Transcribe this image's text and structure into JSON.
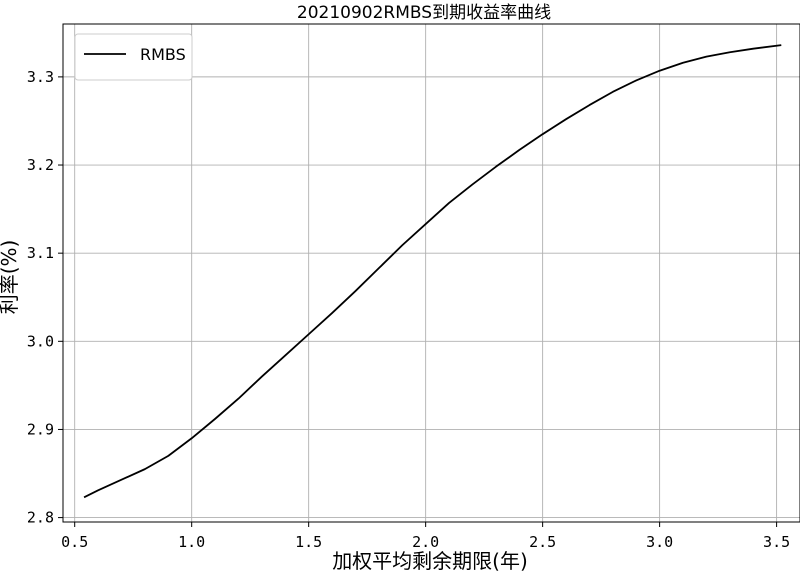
{
  "chart_data": {
    "type": "line",
    "title": "20210902RMBS到期收益率曲线",
    "xlabel": "加权平均剩余期限(年)",
    "ylabel": "利率(%)",
    "xlim": [
      0.45,
      3.6
    ],
    "ylim": [
      2.795,
      3.36
    ],
    "xticks": [
      0.5,
      1.0,
      1.5,
      2.0,
      2.5,
      3.0,
      3.5
    ],
    "xtick_labels": [
      "0.5",
      "1.0",
      "1.5",
      "2.0",
      "2.5",
      "3.0",
      "3.5"
    ],
    "yticks": [
      2.8,
      2.9,
      3.0,
      3.1,
      3.2,
      3.3
    ],
    "ytick_labels": [
      "2.8",
      "2.9",
      "3.0",
      "3.1",
      "3.2",
      "3.3"
    ],
    "grid": true,
    "legend_position": "upper-left",
    "series": [
      {
        "name": "RMBS",
        "color": "#000000",
        "x": [
          0.54,
          0.6,
          0.7,
          0.8,
          0.9,
          1.0,
          1.1,
          1.2,
          1.3,
          1.4,
          1.5,
          1.6,
          1.7,
          1.8,
          1.9,
          2.0,
          2.1,
          2.2,
          2.3,
          2.4,
          2.5,
          2.6,
          2.7,
          2.8,
          2.9,
          3.0,
          3.1,
          3.2,
          3.3,
          3.4,
          3.52
        ],
        "y": [
          2.823,
          2.831,
          2.843,
          2.855,
          2.87,
          2.89,
          2.912,
          2.935,
          2.96,
          2.984,
          3.008,
          3.032,
          3.057,
          3.083,
          3.109,
          3.133,
          3.157,
          3.178,
          3.198,
          3.217,
          3.235,
          3.252,
          3.268,
          3.283,
          3.296,
          3.307,
          3.316,
          3.323,
          3.328,
          3.332,
          3.336
        ]
      }
    ]
  }
}
